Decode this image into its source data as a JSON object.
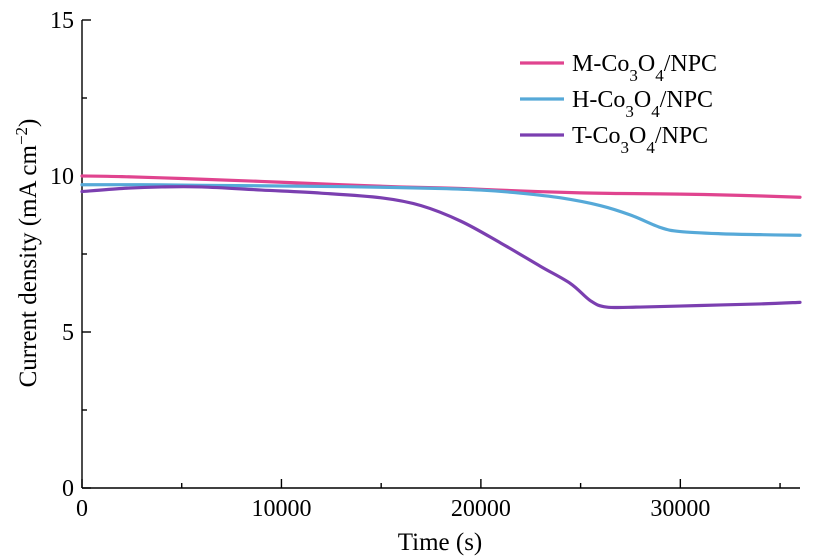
{
  "chart_data": {
    "type": "line",
    "title": "",
    "xlabel": "Time (s)",
    "ylabel": {
      "prefix": "Current density (mA cm",
      "sup": "−2",
      "suffix": ")"
    },
    "xlim": [
      0,
      36000
    ],
    "ylim": [
      0,
      15
    ],
    "x_ticks": [
      0,
      10000,
      20000,
      30000
    ],
    "y_ticks": [
      0,
      5,
      10,
      15
    ],
    "grid": false,
    "legend_position": "top-right",
    "series": [
      {
        "name": "M-Co3O4/NPC",
        "label_parts": [
          [
            "M-Co",
            ""
          ],
          [
            "3",
            "sub"
          ],
          [
            "O",
            ""
          ],
          [
            "4",
            "sub"
          ],
          [
            "/NPC",
            ""
          ]
        ],
        "color": "#E0448F",
        "points": [
          [
            0,
            10.0
          ],
          [
            2000,
            9.98
          ],
          [
            5000,
            9.92
          ],
          [
            8000,
            9.85
          ],
          [
            10000,
            9.8
          ],
          [
            13000,
            9.72
          ],
          [
            16000,
            9.65
          ],
          [
            19000,
            9.6
          ],
          [
            22000,
            9.52
          ],
          [
            25000,
            9.46
          ],
          [
            27000,
            9.44
          ],
          [
            30000,
            9.42
          ],
          [
            33000,
            9.38
          ],
          [
            36000,
            9.32
          ]
        ]
      },
      {
        "name": "H-Co3O4/NPC",
        "label_parts": [
          [
            "H-Co",
            ""
          ],
          [
            "3",
            "sub"
          ],
          [
            "O",
            ""
          ],
          [
            "4",
            "sub"
          ],
          [
            "/NPC",
            ""
          ]
        ],
        "color": "#56A9D8",
        "points": [
          [
            0,
            9.72
          ],
          [
            3000,
            9.72
          ],
          [
            6000,
            9.7
          ],
          [
            10000,
            9.68
          ],
          [
            14000,
            9.65
          ],
          [
            18000,
            9.6
          ],
          [
            20000,
            9.55
          ],
          [
            22000,
            9.45
          ],
          [
            24000,
            9.3
          ],
          [
            26000,
            9.05
          ],
          [
            27500,
            8.75
          ],
          [
            29000,
            8.35
          ],
          [
            30000,
            8.22
          ],
          [
            32000,
            8.15
          ],
          [
            34000,
            8.12
          ],
          [
            36000,
            8.1
          ]
        ]
      },
      {
        "name": "T-Co3O4/NPC",
        "label_parts": [
          [
            "T-Co",
            ""
          ],
          [
            "3",
            "sub"
          ],
          [
            "O",
            ""
          ],
          [
            "4",
            "sub"
          ],
          [
            "/NPC",
            ""
          ]
        ],
        "color": "#7B3FB0",
        "points": [
          [
            0,
            9.5
          ],
          [
            2000,
            9.6
          ],
          [
            4000,
            9.65
          ],
          [
            6000,
            9.65
          ],
          [
            9000,
            9.55
          ],
          [
            12000,
            9.45
          ],
          [
            15000,
            9.3
          ],
          [
            17000,
            9.05
          ],
          [
            19000,
            8.55
          ],
          [
            21000,
            7.85
          ],
          [
            23000,
            7.1
          ],
          [
            24500,
            6.55
          ],
          [
            25500,
            6.0
          ],
          [
            26300,
            5.8
          ],
          [
            28000,
            5.8
          ],
          [
            31000,
            5.85
          ],
          [
            34000,
            5.9
          ],
          [
            36000,
            5.95
          ]
        ]
      }
    ]
  }
}
